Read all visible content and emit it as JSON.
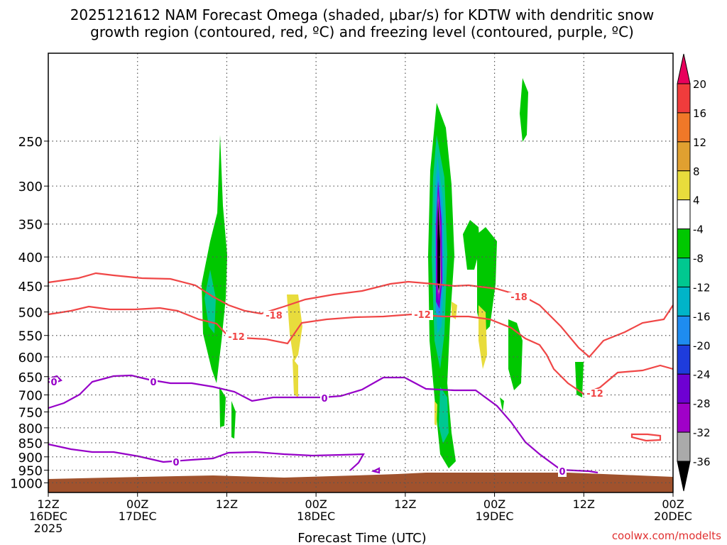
{
  "chart_data": {
    "type": "heatmap",
    "title_line1": "2025121612 NAM Forecast Omega (shaded, μbar/s) for KDTW with dendritic snow",
    "title_line2": "growth region (contoured, red, ºC) and freezing level (contoured, purple, ºC)",
    "xlabel": "Forecast Time (UTC)",
    "ylabel": "",
    "y_ticks": [
      "250",
      "300",
      "350",
      "400",
      "450",
      "500",
      "550",
      "600",
      "650",
      "700",
      "750",
      "800",
      "850",
      "900",
      "950",
      "1000"
    ],
    "y_tick_values": [
      250,
      300,
      350,
      400,
      450,
      500,
      550,
      600,
      650,
      700,
      750,
      800,
      850,
      900,
      950,
      1000
    ],
    "y_range_hpa": [
      175,
      1040
    ],
    "x_range_hours": [
      0,
      84
    ],
    "x_ticks": [
      {
        "hour": 0,
        "l1": "12Z",
        "l2": "16DEC",
        "l3": "2025"
      },
      {
        "hour": 12,
        "l1": "00Z",
        "l2": "17DEC",
        "l3": ""
      },
      {
        "hour": 24,
        "l1": "12Z",
        "l2": "",
        "l3": ""
      },
      {
        "hour": 36,
        "l1": "00Z",
        "l2": "18DEC",
        "l3": ""
      },
      {
        "hour": 48,
        "l1": "12Z",
        "l2": "",
        "l3": ""
      },
      {
        "hour": 60,
        "l1": "00Z",
        "l2": "19DEC",
        "l3": ""
      },
      {
        "hour": 72,
        "l1": "12Z",
        "l2": "",
        "l3": ""
      },
      {
        "hour": 84,
        "l1": "00Z",
        "l2": "20DEC",
        "l3": ""
      }
    ],
    "colorbar": {
      "labels": [
        "20",
        "16",
        "12",
        "8",
        "4",
        "-4",
        "-8",
        "-12",
        "-16",
        "-20",
        "-24",
        "-28",
        "-32",
        "-36"
      ],
      "colors": [
        "#e8005c",
        "#f03c3c",
        "#f07828",
        "#e0a030",
        "#e8dc3c",
        "#ffffff",
        "#00c800",
        "#00c890",
        "#00b4c8",
        "#1e8cf0",
        "#1e3cdc",
        "#6e00d2",
        "#a000c8",
        "#aaaaaa",
        "#000000"
      ]
    },
    "contour_labels": {
      "red_labels": [
        "-18",
        "-12",
        "-12",
        "-18",
        "-12"
      ],
      "purple_labels": [
        "0",
        "0",
        "0",
        "0",
        "0"
      ]
    },
    "colors": {
      "red_contour": "#f04646",
      "purple_contour": "#9600c8",
      "ground": "#a0522d",
      "grid": "#555555"
    },
    "credit": "coolwx.com/modelts"
  }
}
